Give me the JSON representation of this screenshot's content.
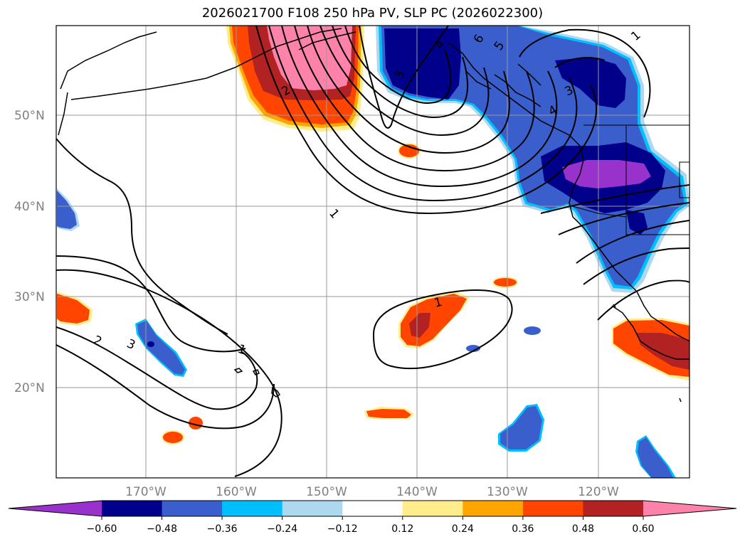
{
  "title": "2026021700 F108 250 hPa PV, SLP PC (2026022300)",
  "lat_labels": [
    "50°N",
    "40°N",
    "30°N",
    "20°N"
  ],
  "lon_labels": [
    "170°W",
    "160°W",
    "150°W",
    "140°W",
    "130°W",
    "120°W"
  ],
  "colorbar": {
    "colors": [
      "#9932cc",
      "#00008b",
      "#3a5fcd",
      "#00bfff",
      "#add8f0",
      "#ffffff",
      "#ffec8b",
      "#ffa500",
      "#ff4500",
      "#b22222",
      "#ff82ab"
    ],
    "labels": [
      "−0.60",
      "−0.48",
      "−0.36",
      "−0.24",
      "−0.12",
      "0.12",
      "0.24",
      "0.36",
      "0.48",
      "0.60"
    ]
  },
  "contour_labels": [
    "1",
    "2",
    "3",
    "1",
    "1",
    "2",
    "3",
    "4",
    "5",
    "6",
    "3",
    "4",
    "1"
  ]
}
